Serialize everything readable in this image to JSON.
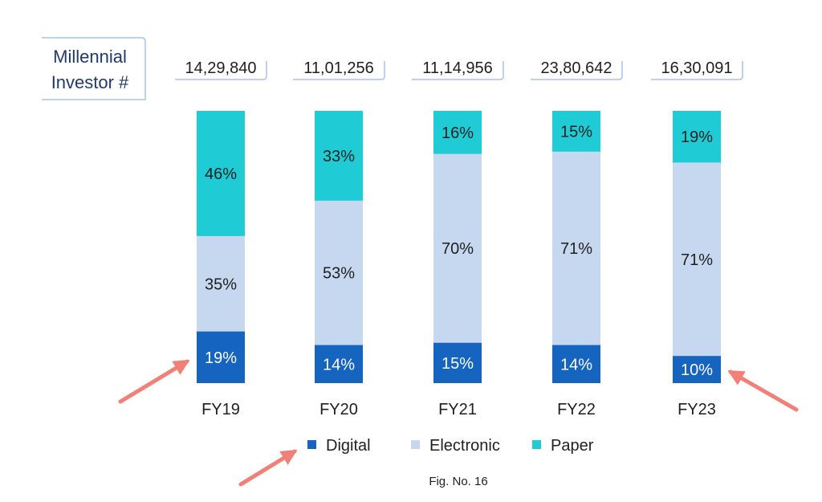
{
  "chart_data": {
    "type": "bar",
    "stacked": true,
    "percent_stacked": true,
    "header_label": [
      "Millennial",
      "Investor #"
    ],
    "categories": [
      "FY19",
      "FY20",
      "FY21",
      "FY22",
      "FY23"
    ],
    "investor_counts": [
      "14,29,840",
      "11,01,256",
      "11,14,956",
      "23,80,642",
      "16,30,091"
    ],
    "series": [
      {
        "name": "Digital",
        "values": [
          19,
          14,
          15,
          14,
          10
        ],
        "color": "#1565c0",
        "label_color": "#ffffff"
      },
      {
        "name": "Electronic",
        "values": [
          35,
          53,
          70,
          71,
          71
        ],
        "color": "#c6d8f0",
        "label_color": "#1f1f1f"
      },
      {
        "name": "Paper",
        "values": [
          46,
          33,
          16,
          15,
          19
        ],
        "color": "#1fccd6",
        "label_color": "#1f1f1f"
      }
    ],
    "value_suffix": "%",
    "legend_position": "bottom",
    "caption": "Fig. No. 16",
    "annotation_color": "#f08078"
  }
}
